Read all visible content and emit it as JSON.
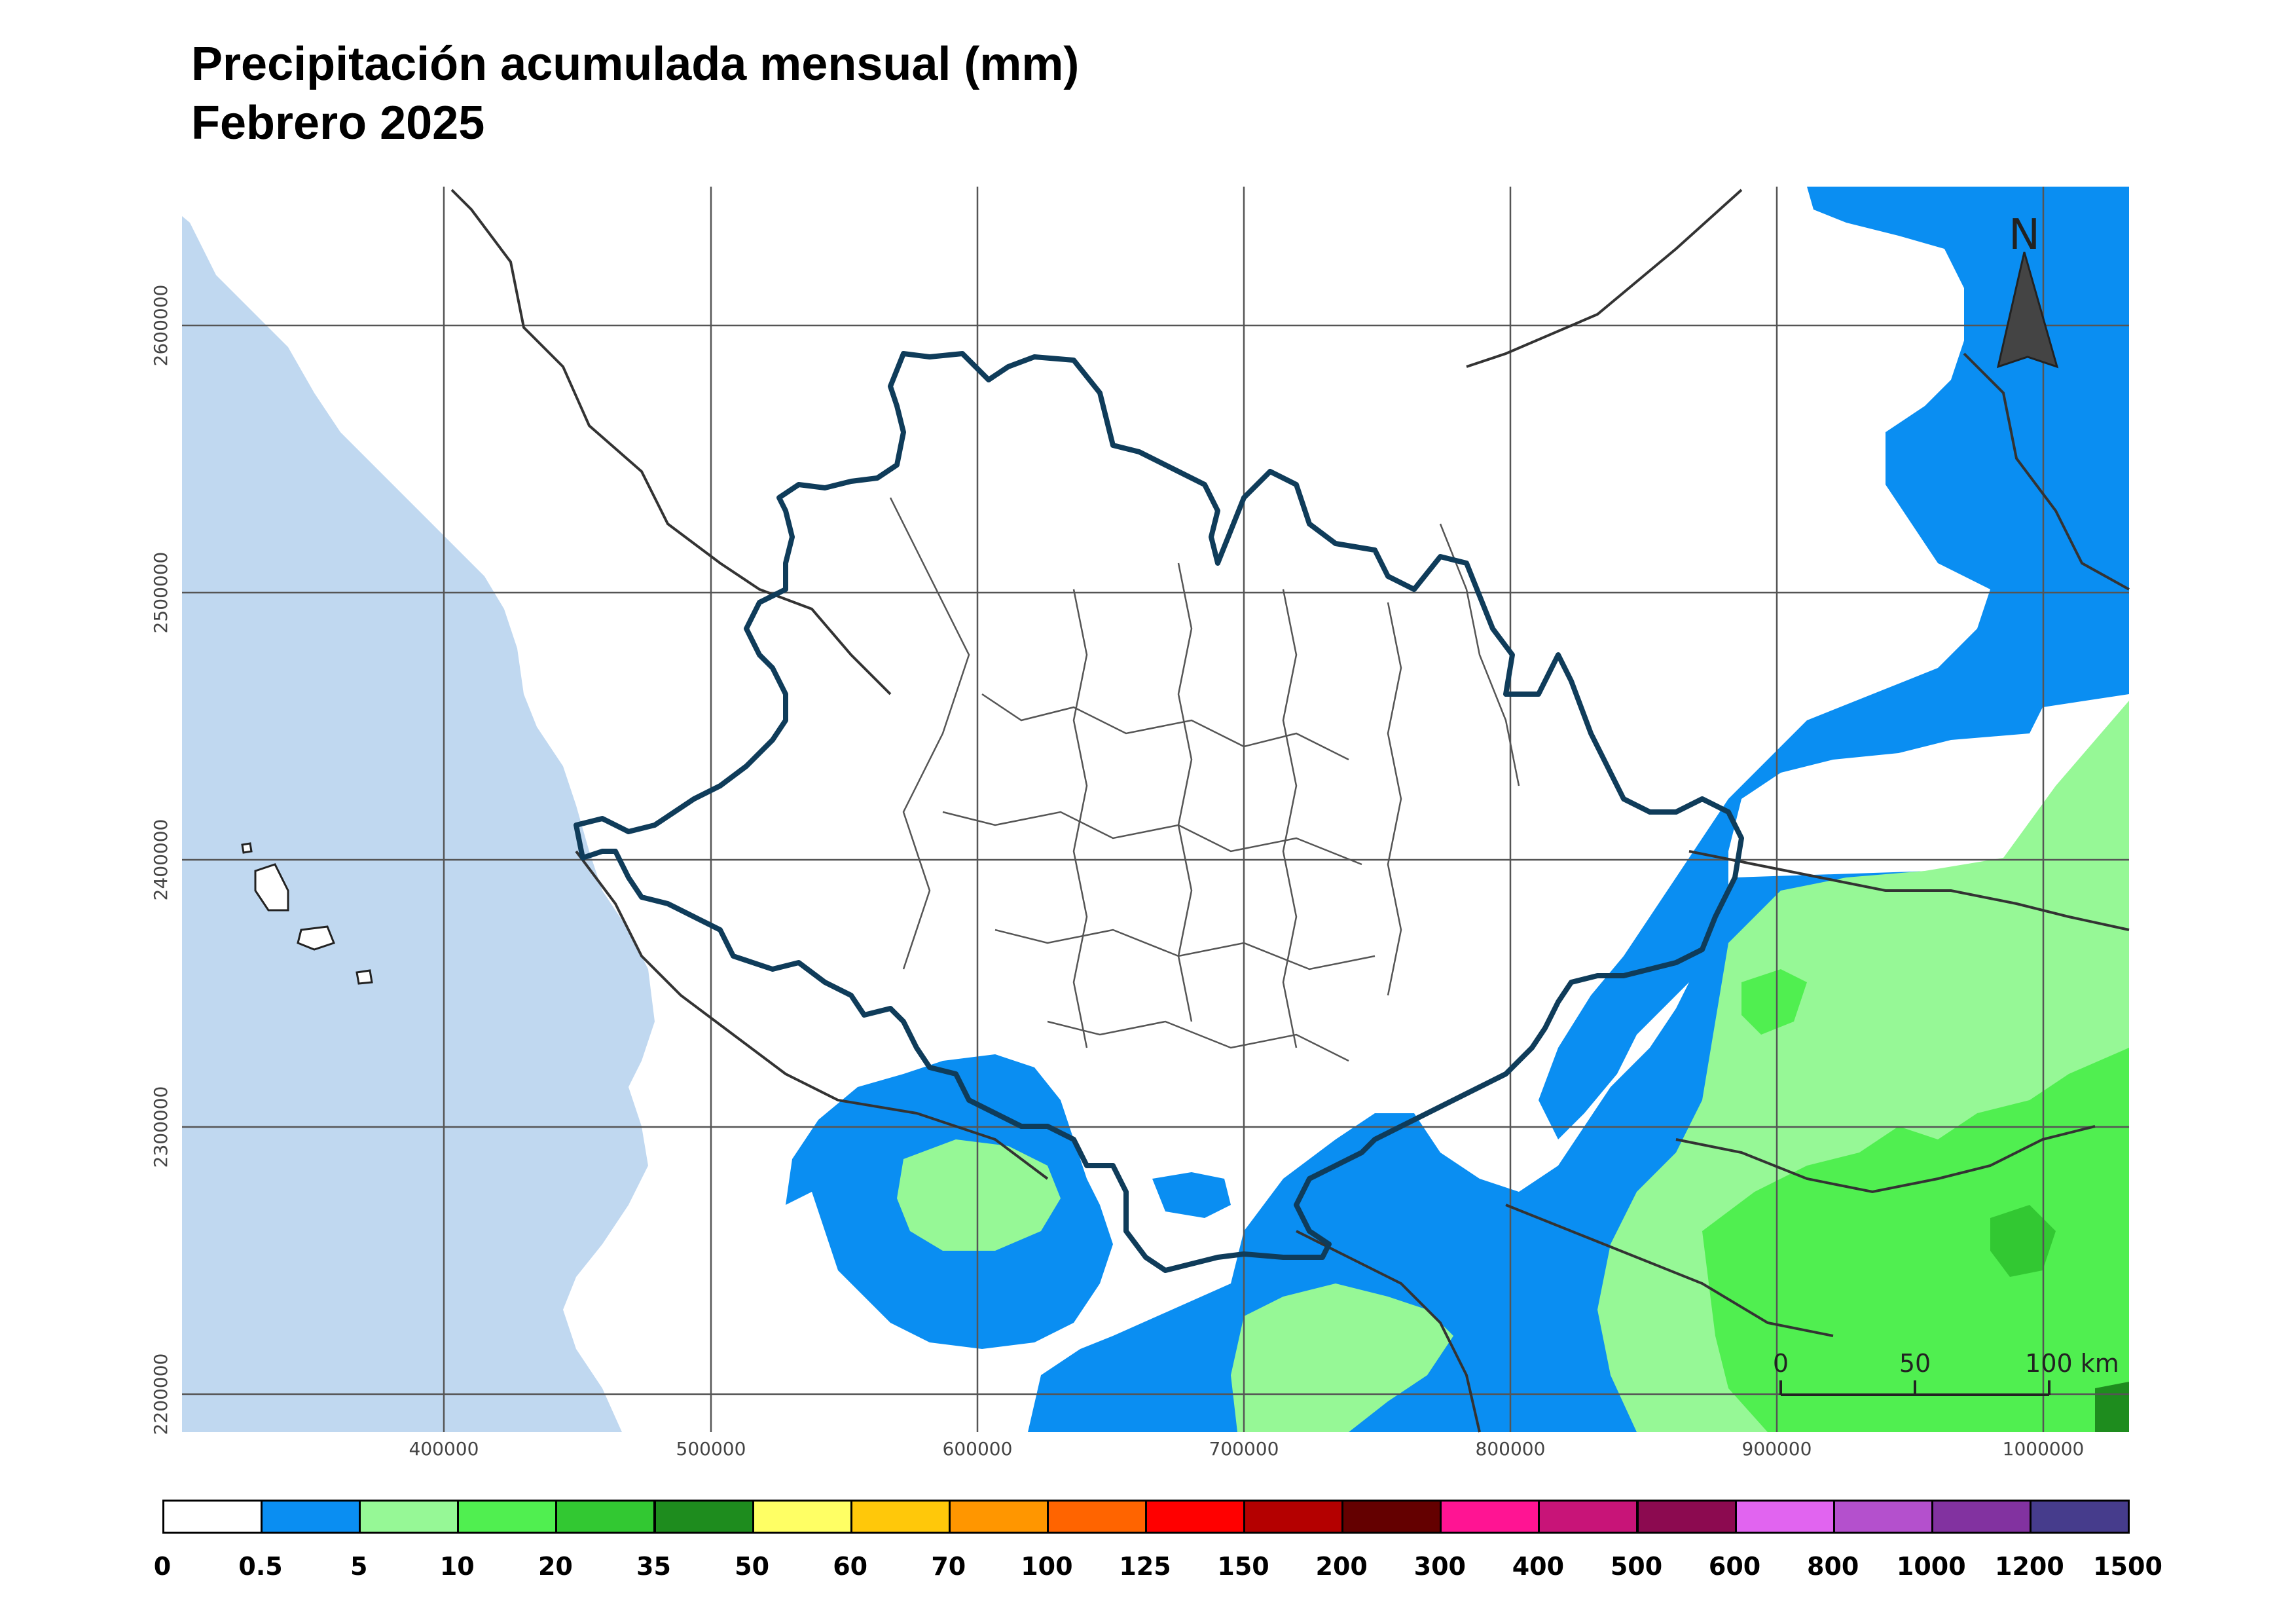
{
  "title": "Precipitación acumulada mensual (mm)",
  "subtitle": "Febrero 2025",
  "north_label": "N",
  "scale_labels": [
    "0",
    "50",
    "100 km"
  ],
  "x_ticks": [
    "400000",
    "500000",
    "600000",
    "700000",
    "800000",
    "900000",
    "1000000"
  ],
  "y_ticks": [
    "2600000",
    "2500000",
    "2400000",
    "2300000",
    "2200000"
  ],
  "legend": {
    "breaks": [
      "0",
      "0.5",
      "5",
      "10",
      "20",
      "35",
      "50",
      "60",
      "70",
      "100",
      "125",
      "150",
      "200",
      "300",
      "400",
      "500",
      "600",
      "800",
      "1000",
      "1200",
      "1500"
    ],
    "colors": [
      "#ffffff",
      "#0a8ef2",
      "#96f896",
      "#50ef50",
      "#32c832",
      "#1e8c1e",
      "#ffff64",
      "#ffc80a",
      "#ff9600",
      "#ff6400",
      "#ff0000",
      "#b40000",
      "#640000",
      "#ff1493",
      "#c81478",
      "#8c0a50",
      "#e164f0",
      "#b450cd",
      "#8232a0",
      "#463c8c"
    ]
  },
  "colors": {
    "ocean": "#c0d8f0",
    "rain_05_5": "#0a8ef2",
    "rain_5_10": "#96f896",
    "rain_10_20": "#50ef50",
    "rain_20_35": "#32c832",
    "state_outline": "#0f3c5a"
  }
}
